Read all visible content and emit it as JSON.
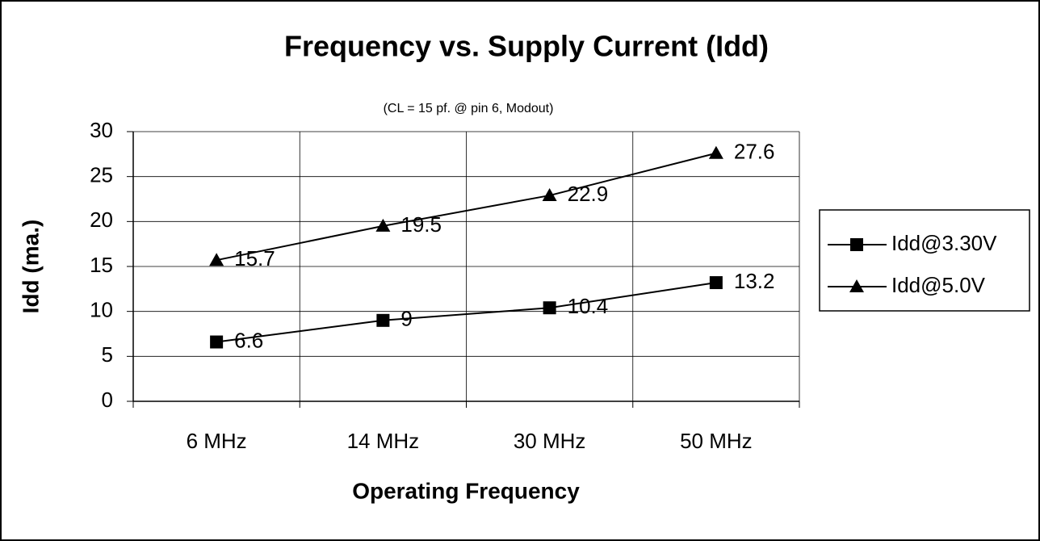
{
  "chart_data": {
    "type": "line",
    "title": "Frequency vs. Supply Current (Idd)",
    "subtitle": "(CL = 15 pf. @ pin 6, Modout)",
    "x_label": "Operating Frequency",
    "y_label": "Idd (ma.)",
    "categories": [
      "6 MHz",
      "14 MHz",
      "30 MHz",
      "50 MHz"
    ],
    "series": [
      {
        "name": "Idd@3.30V",
        "color": "#000000",
        "marker": "square",
        "values": [
          6.6,
          9,
          10.4,
          13.2
        ]
      },
      {
        "name": "Idd@5.0V",
        "color": "#000000",
        "marker": "triangle",
        "values": [
          15.7,
          19.5,
          22.9,
          27.6
        ]
      }
    ],
    "ylim": [
      0,
      30
    ],
    "yticks": [
      0,
      5,
      10,
      15,
      20,
      25,
      30
    ],
    "grid": true,
    "legend": "right"
  }
}
